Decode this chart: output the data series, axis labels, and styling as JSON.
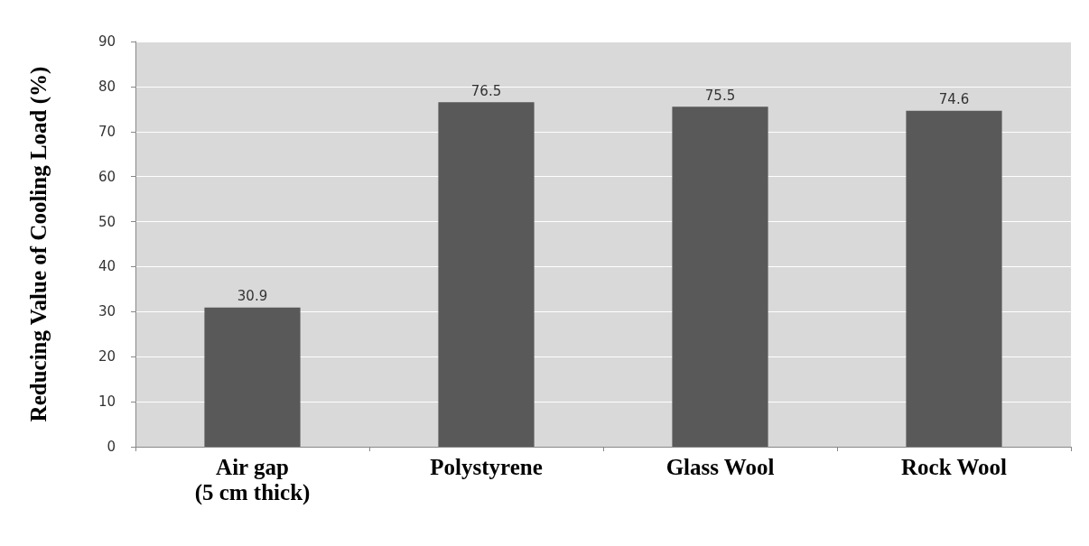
{
  "chart_data": {
    "type": "bar",
    "ylabel": "Reducing Value of Cooling Load (%)",
    "categories": [
      "Air gap\n(5 cm thick)",
      "Polystyrene",
      "Glass Wool",
      "Rock Wool"
    ],
    "values": [
      30.9,
      76.5,
      75.5,
      74.6
    ],
    "color": "#595959",
    "ylim": [
      0,
      90
    ],
    "yticks": [
      0,
      10,
      20,
      30,
      40,
      50,
      60,
      70,
      80,
      90
    ],
    "grid": "y",
    "data_labels": true
  }
}
